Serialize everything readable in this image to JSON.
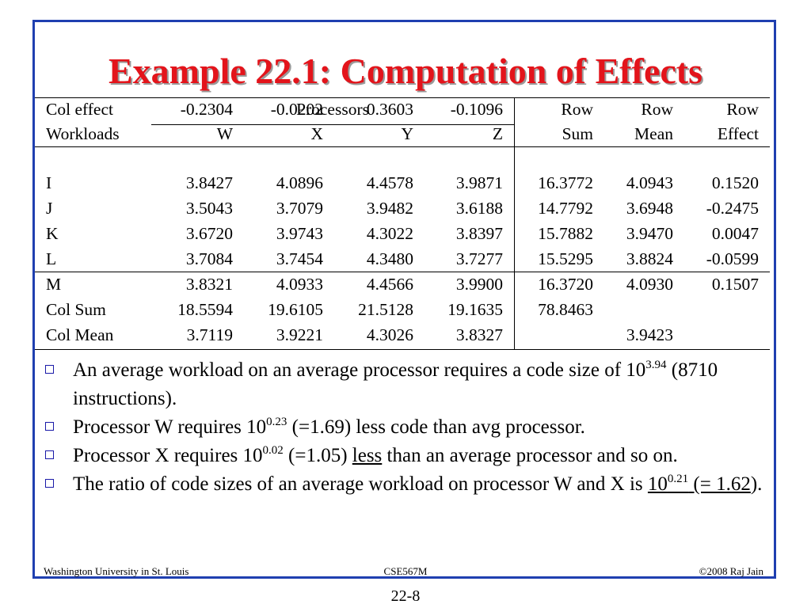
{
  "title": "Example 22.1: Computation of Effects",
  "table": {
    "group_header": "Processors",
    "row_header": "Workloads",
    "columns": [
      "W",
      "X",
      "Y",
      "Z"
    ],
    "extra_top": [
      "Row",
      "Row",
      "Row"
    ],
    "extra_bottom": [
      "Sum",
      "Mean",
      "Effect"
    ],
    "rows": [
      {
        "label": "I",
        "values": [
          "3.8427",
          "4.0896",
          "4.4578",
          "3.9871",
          "16.3772",
          "4.0943",
          "0.1520"
        ]
      },
      {
        "label": "J",
        "values": [
          "3.5043",
          "3.7079",
          "3.9482",
          "3.6188",
          "14.7792",
          "3.6948",
          "-0.2475"
        ]
      },
      {
        "label": "K",
        "values": [
          "3.6720",
          "3.9743",
          "4.3022",
          "3.8397",
          "15.7882",
          "3.9470",
          "0.0047"
        ]
      },
      {
        "label": "L",
        "values": [
          "3.7084",
          "3.7454",
          "4.3480",
          "3.7277",
          "15.5295",
          "3.8824",
          "-0.0599"
        ]
      },
      {
        "label": "M",
        "values": [
          "3.8321",
          "4.0933",
          "4.4566",
          "3.9900",
          "16.3720",
          "4.0930",
          "0.1507"
        ]
      }
    ],
    "summary": [
      {
        "label": "Col Sum",
        "values": [
          "18.5594",
          "19.6105",
          "21.5128",
          "19.1635",
          "78.8463",
          "",
          ""
        ]
      },
      {
        "label": "Col Mean",
        "values": [
          "3.7119",
          "3.9221",
          "4.3026",
          "3.8327",
          "",
          "3.9423",
          ""
        ]
      },
      {
        "label": "Col effect",
        "values": [
          "-0.2304",
          "-0.0202",
          "0.3603",
          "-0.1096",
          "",
          "",
          ""
        ]
      }
    ]
  },
  "bullets": {
    "b1": {
      "t1": "An average workload on an average processor requires a code size of 10",
      "sup": "3.94",
      "t2": " (8710 instructions)."
    },
    "b2": {
      "t1": "Processor W requires 10",
      "sup": "0.23",
      "t2": " (=1.69) less code than avg processor."
    },
    "b3": {
      "t1": "Processor X requires 10",
      "sup": "0.02",
      "t2": " (=1.05) ",
      "u": "less",
      "t3": " than an average processor and so on."
    },
    "b4": {
      "t1": " The ratio of code sizes of an average workload on processor W and X is ",
      "u1": "10",
      "sup": "0.21",
      "u2": " (= 1.62",
      "t2": ")."
    }
  },
  "footer": {
    "left": "Washington University in St. Louis",
    "center": "CSE567M",
    "right": "©2008 Raj Jain"
  },
  "page_number": "22-8"
}
